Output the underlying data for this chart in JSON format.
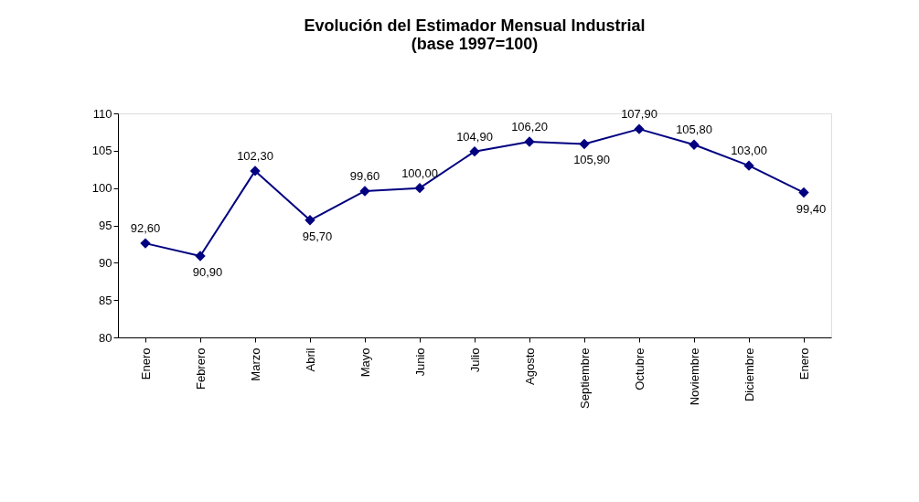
{
  "chart_data": {
    "type": "line",
    "title": "Evolución del Estimador Mensual Industrial\n(base 1997=100)",
    "categories": [
      "Enero",
      "Febrero",
      "Marzo",
      "Abril",
      "Mayo",
      "Junio",
      "Julio",
      "Agosto",
      "Septiembre",
      "Octubre",
      "Noviembre",
      "Diciembre",
      "Enero"
    ],
    "series": [
      {
        "color": "#000080",
        "values": [
          92.6,
          90.9,
          102.3,
          95.7,
          99.6,
          100.0,
          104.9,
          106.2,
          105.9,
          107.9,
          105.8,
          103.0,
          99.4
        ],
        "value_labels": [
          "92,60",
          "90,90",
          "102,30",
          "95,70",
          "99,60",
          "100,00",
          "104,90",
          "106,20",
          "105,90",
          "107,90",
          "105,80",
          "103,00",
          "99,40"
        ]
      }
    ],
    "ylim": [
      80,
      110
    ],
    "yticks": [
      80,
      85,
      90,
      95,
      100,
      105,
      110
    ],
    "marker": "diamond",
    "line_style": "solid",
    "grid": false
  }
}
